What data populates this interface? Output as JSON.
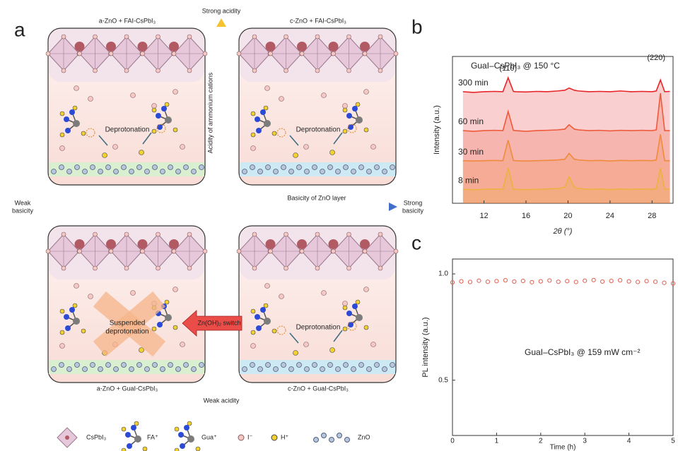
{
  "panel_labels": [
    "a",
    "b",
    "c"
  ],
  "diagram": {
    "quadrants": [
      {
        "title": "a-ZnO + FAI-CsPbI₃",
        "process": [
          "Deprotonation"
        ]
      },
      {
        "title": "c-ZnO + FAI-CsPbI₃",
        "process": [
          "Deprotonation"
        ]
      },
      {
        "title": "a-ZnO + GuaI-CsPbI₃",
        "process": [
          "Suspended",
          "deprotonation"
        ]
      },
      {
        "title": "c-ZnO + GuaI-CsPbI₃",
        "process": [
          "Deprotonation"
        ]
      }
    ],
    "axes": {
      "up": "Strong acidity",
      "down": "Weak acidity",
      "vertical": "Acidity of ammonium cations",
      "left": [
        "Weak",
        "basicity"
      ],
      "right": [
        "Strong",
        "basicity"
      ],
      "horizontal": "Basicity of ZnO layer"
    },
    "switch": "Zn(OH)₂ switch",
    "legend": [
      "CsPbI₃",
      "FA⁺",
      "Gua⁺",
      "I⁻",
      "H⁺",
      "ZnO"
    ]
  },
  "chart_data": [
    {
      "type": "line",
      "title": "GuaI–CsPbI₃ @ 150 °C",
      "x_label": "2θ (°)",
      "y_label": "Intensity (a.u.)",
      "annotations": [
        "(110)",
        "(220)"
      ],
      "x": [
        10,
        11,
        12,
        13,
        13.8,
        14.3,
        14.8,
        15,
        16,
        17,
        18,
        19,
        19.7,
        20.1,
        20.6,
        21,
        22,
        23,
        24,
        25,
        26,
        27,
        28,
        28.4,
        28.8,
        29.2,
        29.7
      ],
      "xlim": [
        9,
        30
      ],
      "xticks": [
        12,
        16,
        20,
        24,
        28
      ],
      "ylim": [
        0,
        10
      ],
      "series": [
        {
          "name": "300 min",
          "color": "#e8262a",
          "values": [
            7.6,
            7.55,
            7.6,
            7.62,
            7.6,
            8.55,
            7.62,
            7.6,
            7.58,
            7.62,
            7.6,
            7.65,
            7.7,
            7.85,
            7.7,
            7.65,
            7.6,
            7.62,
            7.6,
            7.65,
            7.6,
            7.62,
            7.6,
            7.65,
            8.4,
            7.6,
            7.62
          ]
        },
        {
          "name": "60 min",
          "color": "#ee5a3a",
          "values": [
            4.95,
            4.9,
            4.95,
            4.97,
            4.95,
            6.25,
            4.97,
            4.95,
            4.9,
            4.95,
            4.97,
            5.0,
            5.05,
            5.35,
            5.05,
            5.0,
            4.95,
            4.97,
            4.93,
            4.97,
            4.95,
            4.97,
            4.95,
            5.0,
            7.5,
            4.95,
            4.95
          ]
        },
        {
          "name": "30 min",
          "color": "#f08a3c",
          "values": [
            2.9,
            2.88,
            2.9,
            2.92,
            2.9,
            4.3,
            2.92,
            2.9,
            2.88,
            2.9,
            2.92,
            2.95,
            3.0,
            3.4,
            3.0,
            2.95,
            2.9,
            2.92,
            2.88,
            2.92,
            2.9,
            2.92,
            2.9,
            2.95,
            4.7,
            2.9,
            2.9
          ]
        },
        {
          "name": "8 min",
          "color": "#efb040",
          "values": [
            0.95,
            0.92,
            0.95,
            0.97,
            0.95,
            2.4,
            0.97,
            0.95,
            0.93,
            0.95,
            0.97,
            1.0,
            1.1,
            1.8,
            1.1,
            1.0,
            0.95,
            0.97,
            0.93,
            0.97,
            0.95,
            0.97,
            0.95,
            1.0,
            2.4,
            0.95,
            0.95
          ]
        }
      ]
    },
    {
      "type": "scatter",
      "x_label": "Time (h)",
      "y_label": "PL intensity (a.u.)",
      "annotations": [
        "GuaI–CsPbI₃ @ 159 mW cm⁻²"
      ],
      "color": "#e06050",
      "x": [
        0,
        0.2,
        0.4,
        0.6,
        0.8,
        1,
        1.2,
        1.4,
        1.6,
        1.8,
        2,
        2.2,
        2.4,
        2.6,
        2.8,
        3,
        3.2,
        3.4,
        3.6,
        3.8,
        4,
        4.2,
        4.4,
        4.6,
        4.8,
        5
      ],
      "values": [
        0.96,
        0.965,
        0.962,
        0.968,
        0.963,
        0.966,
        0.97,
        0.964,
        0.967,
        0.961,
        0.965,
        0.969,
        0.963,
        0.966,
        0.962,
        0.968,
        0.971,
        0.964,
        0.967,
        0.97,
        0.965,
        0.962,
        0.966,
        0.963,
        0.958,
        0.955
      ],
      "xlim": [
        0,
        5
      ],
      "xticks": [
        0,
        1,
        2,
        3,
        4,
        5
      ],
      "ylim": [
        0.24,
        1.07
      ],
      "yticks": [
        0.5,
        {
          "value": 1,
          "label": "1.0"
        }
      ]
    }
  ]
}
